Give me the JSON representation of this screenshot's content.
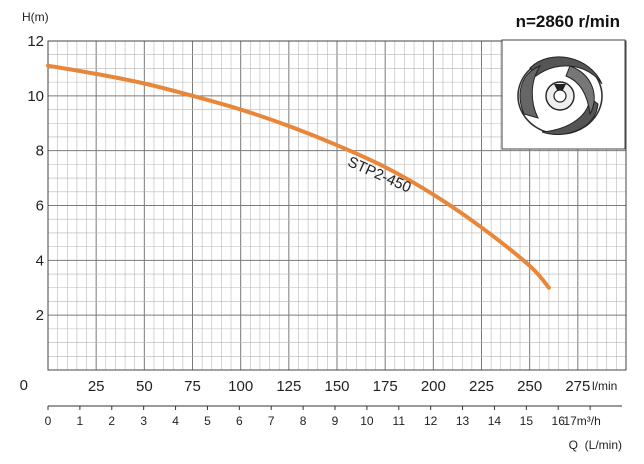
{
  "chart_data": {
    "type": "line",
    "title": "n=2860 r/min",
    "ylabel": "H(m)",
    "xlabel_primary_unit": "l/min",
    "xlabel_secondary": "Q  (L/min)",
    "ylim": [
      0,
      12
    ],
    "xlim": [
      0,
      300
    ],
    "grid": true,
    "x_ticks_primary": [
      "0",
      "25",
      "50",
      "75",
      "100",
      "125",
      "150",
      "175",
      "200",
      "225",
      "250",
      "275"
    ],
    "x_ticks_secondary": [
      "0",
      "1",
      "2",
      "3",
      "4",
      "5",
      "6",
      "7",
      "8",
      "9",
      "10",
      "11",
      "12",
      "13",
      "14",
      "15",
      "16",
      "17m³/h"
    ],
    "y_ticks": [
      "2",
      "4",
      "6",
      "8",
      "10",
      "12"
    ],
    "y_zero_label": "0",
    "series": [
      {
        "name": "STP2-450",
        "color": "#e8873a",
        "x": [
          0,
          25,
          50,
          75,
          100,
          125,
          150,
          175,
          200,
          225,
          250,
          260
        ],
        "y": [
          11.1,
          10.8,
          10.45,
          10.0,
          9.5,
          8.9,
          8.2,
          7.4,
          6.4,
          5.2,
          3.8,
          3.0
        ]
      }
    ],
    "inset_image": "impeller-icon"
  }
}
